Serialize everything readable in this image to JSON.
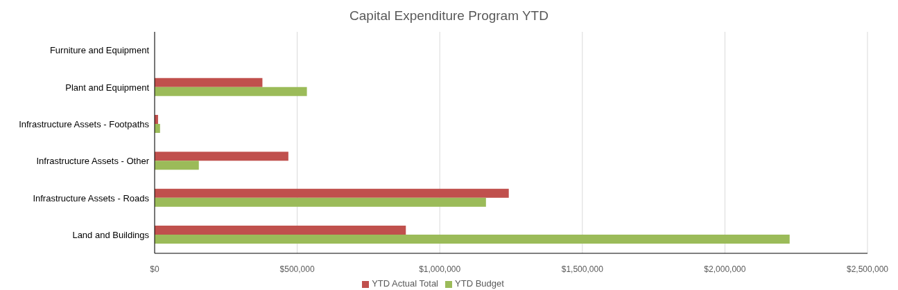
{
  "chart_data": {
    "type": "bar",
    "orientation": "horizontal",
    "title": "Capital Expenditure Program YTD",
    "categories": [
      "Furniture and Equipment",
      "Plant and Equipment",
      "Infrastructure Assets - Footpaths",
      "Infrastructure Assets - Other",
      "Infrastructure Assets - Roads",
      "Land and Buildings"
    ],
    "series": [
      {
        "name": "YTD Actual Total",
        "color": "#c0504d",
        "values": [
          0,
          378000,
          12000,
          469000,
          1242000,
          881000
        ]
      },
      {
        "name": "YTD Budget",
        "color": "#9bbb59",
        "values": [
          0,
          534000,
          19000,
          155000,
          1162000,
          2227000
        ]
      }
    ],
    "xlim": [
      0,
      2500000
    ],
    "xticks": [
      {
        "value": 0,
        "label": "$0"
      },
      {
        "value": 500000,
        "label": "$500,000"
      },
      {
        "value": 1000000,
        "label": "$1,000,000"
      },
      {
        "value": 1500000,
        "label": "$1,500,000"
      },
      {
        "value": 2000000,
        "label": "$2,000,000"
      },
      {
        "value": 2500000,
        "label": "$2,500,000"
      }
    ],
    "grid": "x",
    "legend": "bottom"
  }
}
